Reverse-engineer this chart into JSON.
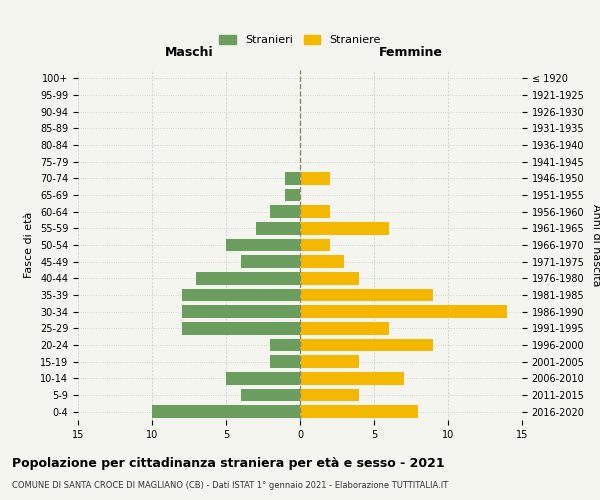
{
  "age_groups": [
    "0-4",
    "5-9",
    "10-14",
    "15-19",
    "20-24",
    "25-29",
    "30-34",
    "35-39",
    "40-44",
    "45-49",
    "50-54",
    "55-59",
    "60-64",
    "65-69",
    "70-74",
    "75-79",
    "80-84",
    "85-89",
    "90-94",
    "95-99",
    "100+"
  ],
  "birth_years": [
    "2016-2020",
    "2011-2015",
    "2006-2010",
    "2001-2005",
    "1996-2000",
    "1991-1995",
    "1986-1990",
    "1981-1985",
    "1976-1980",
    "1971-1975",
    "1966-1970",
    "1961-1965",
    "1956-1960",
    "1951-1955",
    "1946-1950",
    "1941-1945",
    "1936-1940",
    "1931-1935",
    "1926-1930",
    "1921-1925",
    "≤ 1920"
  ],
  "maschi": [
    10,
    4,
    5,
    2,
    2,
    8,
    8,
    8,
    7,
    4,
    5,
    3,
    2,
    1,
    1,
    0,
    0,
    0,
    0,
    0,
    0
  ],
  "femmine": [
    8,
    4,
    7,
    4,
    9,
    6,
    14,
    9,
    4,
    3,
    2,
    6,
    2,
    0,
    2,
    0,
    0,
    0,
    0,
    0,
    0
  ],
  "male_color": "#6b9e5e",
  "female_color": "#f5b800",
  "background_color": "#f5f5f0",
  "title": "Popolazione per cittadinanza straniera per età e sesso - 2021",
  "subtitle": "COMUNE DI SANTA CROCE DI MAGLIANO (CB) - Dati ISTAT 1° gennaio 2021 - Elaborazione TUTTITALIA.IT",
  "ylabel_left": "Fasce di età",
  "ylabel_right": "Anni di nascita",
  "xlabel_left": "Maschi",
  "xlabel_right": "Femmine",
  "legend_stranieri": "Stranieri",
  "legend_straniere": "Straniere",
  "xlim": 15,
  "grid_color": "#cccccc",
  "bar_height": 0.75
}
